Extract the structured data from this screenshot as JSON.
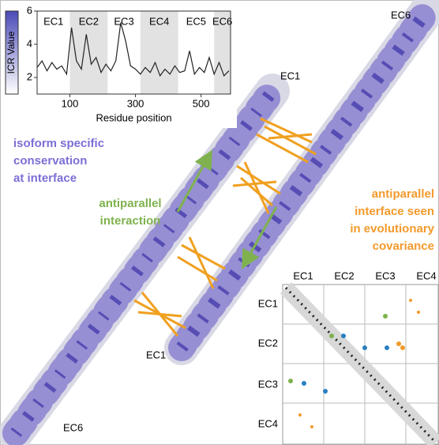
{
  "chart_data": {
    "type": "line",
    "ylabel": "ICR Value",
    "xlabel": "Residue position",
    "x": [
      0,
      15,
      30,
      45,
      60,
      75,
      90,
      105,
      120,
      135,
      150,
      165,
      180,
      195,
      210,
      225,
      240,
      255,
      270,
      285,
      300,
      315,
      330,
      345,
      360,
      375,
      390,
      405,
      420,
      435,
      450,
      465,
      480,
      495,
      510,
      525,
      540,
      555,
      570,
      585
    ],
    "values": [
      2.6,
      3.0,
      2.4,
      2.9,
      2.5,
      2.7,
      2.2,
      5.0,
      3.0,
      2.5,
      4.6,
      2.8,
      3.2,
      2.3,
      2.8,
      2.4,
      3.0,
      5.3,
      4.2,
      2.7,
      2.5,
      2.2,
      2.6,
      2.3,
      2.9,
      2.1,
      2.5,
      2.2,
      2.7,
      2.3,
      2.4,
      3.6,
      2.2,
      2.6,
      2.3,
      3.2,
      2.2,
      2.9,
      2.1,
      2.4
    ],
    "color": "#222222",
    "xlim": [
      0,
      590
    ],
    "ylim": [
      1,
      6
    ],
    "xticks": [
      100,
      300,
      500
    ],
    "yticks": [
      2,
      4,
      6
    ],
    "domains": [
      {
        "name": "EC1",
        "start": 0,
        "end": 100,
        "shaded": false
      },
      {
        "name": "EC2",
        "start": 100,
        "end": 215,
        "shaded": true
      },
      {
        "name": "EC3",
        "start": 215,
        "end": 315,
        "shaded": false
      },
      {
        "name": "EC4",
        "start": 315,
        "end": 430,
        "shaded": true
      },
      {
        "name": "EC5",
        "start": 430,
        "end": 540,
        "shaded": false
      },
      {
        "name": "EC6",
        "start": 540,
        "end": 590,
        "shaded": true
      }
    ]
  },
  "structure_labels": [
    "EC6",
    "EC1",
    "EC1",
    "EC6"
  ],
  "annotations": {
    "conservation": [
      "isoform specific",
      "conservation",
      "at interface"
    ],
    "interaction": [
      "antiparallel",
      "interaction"
    ],
    "covariance": [
      "antiparallel",
      "interface seen",
      "in evolutionary",
      "covariance"
    ]
  },
  "contact_map": {
    "columns": [
      "EC1",
      "EC2",
      "EC3",
      "EC4"
    ],
    "rows": [
      "EC1",
      "EC2",
      "EC3",
      "EC4"
    ]
  }
}
